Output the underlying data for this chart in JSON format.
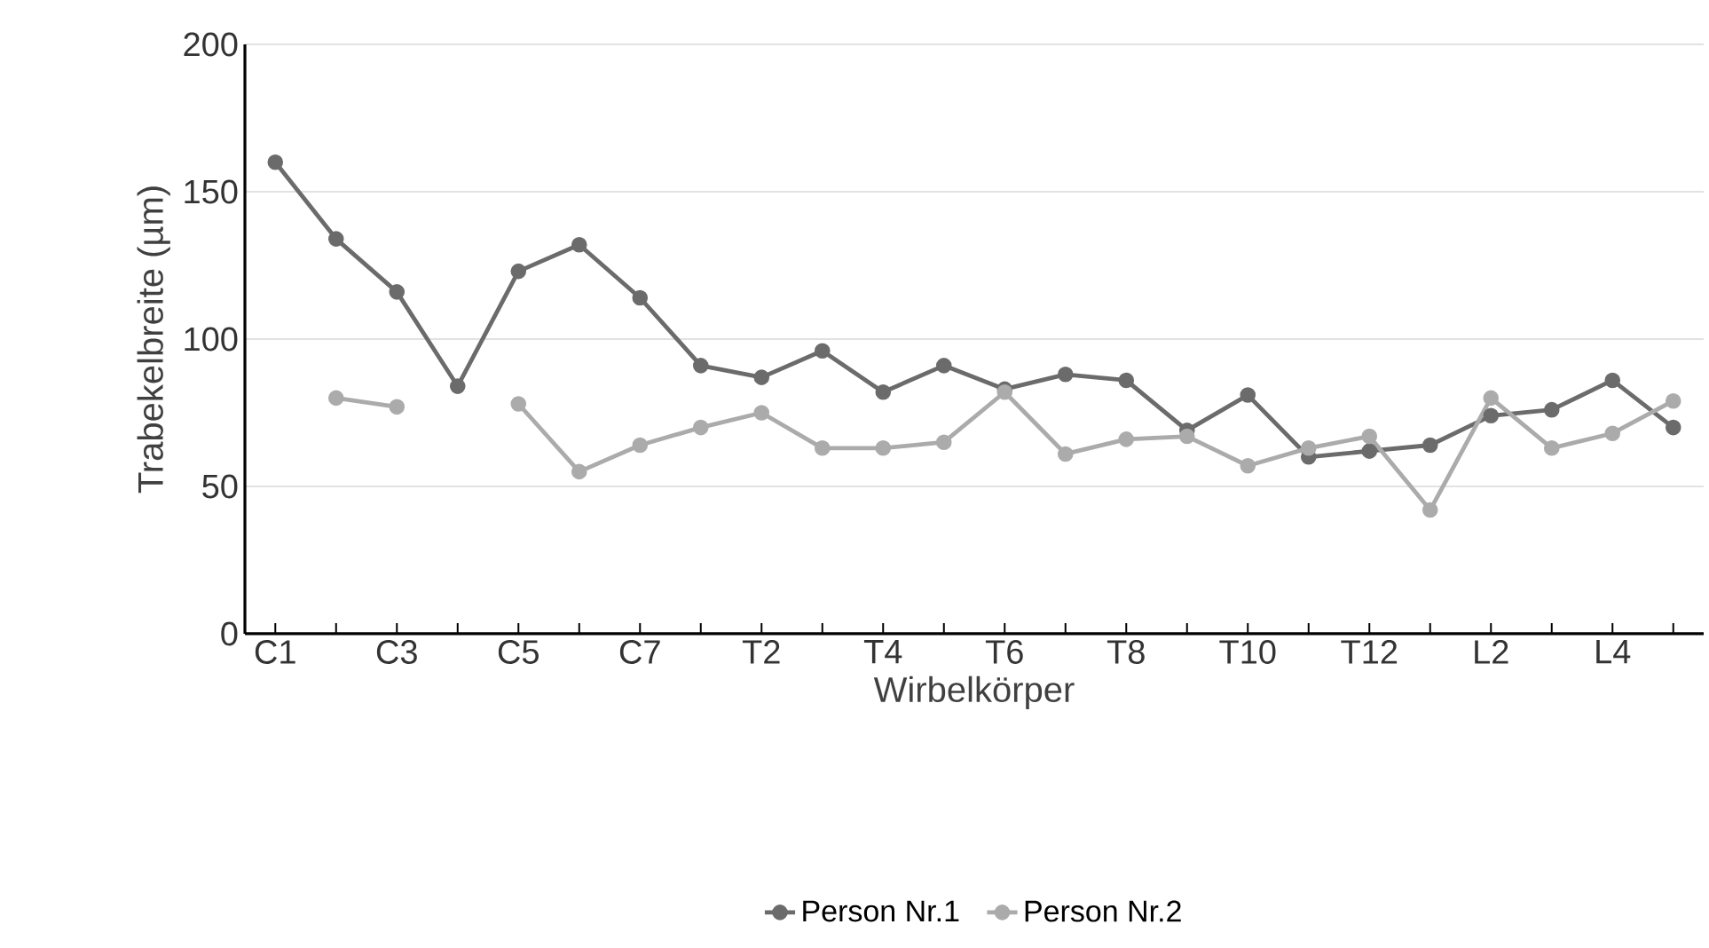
{
  "chart_data": {
    "type": "line",
    "xlabel": "Wirbelkörper",
    "ylabel": "Trabekelbreite (µm)",
    "categories": [
      "C1",
      null,
      "C3",
      null,
      "C5",
      null,
      "C7",
      null,
      "T2",
      null,
      "T4",
      null,
      "T6",
      null,
      "T8",
      null,
      "T10",
      null,
      "T12",
      null,
      "L2",
      null,
      "L4",
      null
    ],
    "series": [
      {
        "name": "Person Nr.1",
        "color": "#6b6b6b",
        "values": [
          160,
          134,
          116,
          84,
          123,
          132,
          114,
          91,
          87,
          96,
          82,
          91,
          83,
          88,
          86,
          69,
          81,
          60,
          62,
          64,
          74,
          76,
          86,
          70
        ]
      },
      {
        "name": "Person Nr.2",
        "color": "#ababab",
        "values": [
          null,
          80,
          77,
          null,
          78,
          55,
          64,
          70,
          75,
          63,
          63,
          65,
          82,
          61,
          66,
          67,
          57,
          63,
          67,
          42,
          80,
          63,
          68,
          79
        ]
      }
    ],
    "ylim": [
      0,
      200
    ],
    "yticks": [
      0,
      50,
      100,
      150,
      200
    ],
    "grid": "y",
    "legend": "bottom",
    "marker": "circle",
    "line_style": "solid"
  }
}
